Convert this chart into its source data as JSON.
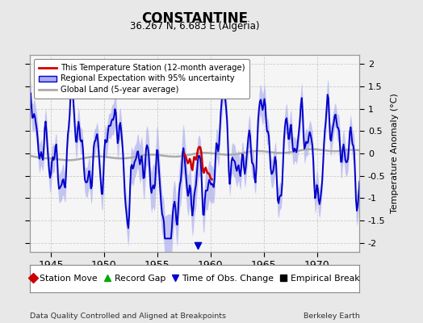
{
  "title": "CONSTANTINE",
  "subtitle": "36.267 N, 6.683 E (Algeria)",
  "ylabel": "Temperature Anomaly (°C)",
  "xlabel_left": "Data Quality Controlled and Aligned at Breakpoints",
  "xlabel_right": "Berkeley Earth",
  "year_start": 1943,
  "year_end": 1974,
  "ylim": [
    -2.2,
    2.2
  ],
  "yticks": [
    -2,
    -1.5,
    -1,
    -0.5,
    0,
    0.5,
    1,
    1.5,
    2
  ],
  "xticks": [
    1945,
    1950,
    1955,
    1960,
    1965,
    1970
  ],
  "bg_color": "#e8e8e8",
  "plot_bg_color": "#f5f5f5",
  "regional_line_color": "#0000cc",
  "regional_fill_color": "#aaaaee",
  "station_line_color": "#cc0000",
  "global_line_color": "#aaaaaa",
  "legend_entries": [
    "This Temperature Station (12-month average)",
    "Regional Expectation with 95% uncertainty",
    "Global Land (5-year average)"
  ]
}
